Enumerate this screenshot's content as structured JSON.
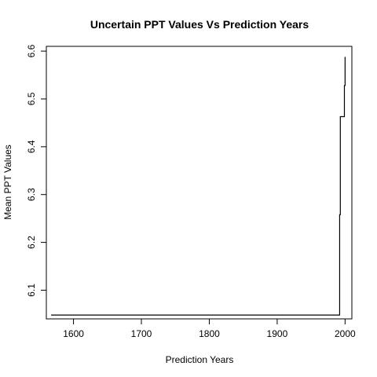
{
  "chart_data": {
    "type": "line",
    "title": "Uncertain PPT Values Vs Prediction Years",
    "xlabel": "Prediction Years",
    "ylabel": "Mean PPT Values",
    "xlim": [
      1560,
      2010
    ],
    "ylim": [
      6.04,
      6.61
    ],
    "xticks": [
      1600,
      1700,
      1800,
      1900,
      2000
    ],
    "xtick_labels": [
      "1600",
      "1700",
      "1800",
      "1900",
      "2000"
    ],
    "yticks": [
      6.1,
      6.2,
      6.3,
      6.4,
      6.5,
      6.6
    ],
    "ytick_labels": [
      "6.1",
      "6.2",
      "6.3",
      "6.4",
      "6.5",
      "6.6"
    ],
    "grid": false,
    "line_style": "steps",
    "line_color": "#000000",
    "series": [
      {
        "x": [
          1567,
          1992,
          1992,
          1993,
          1993,
          1999,
          1999,
          2000,
          2000
        ],
        "y": [
          6.048,
          6.048,
          6.258,
          6.258,
          6.463,
          6.463,
          6.528,
          6.528,
          6.588
        ]
      }
    ]
  }
}
